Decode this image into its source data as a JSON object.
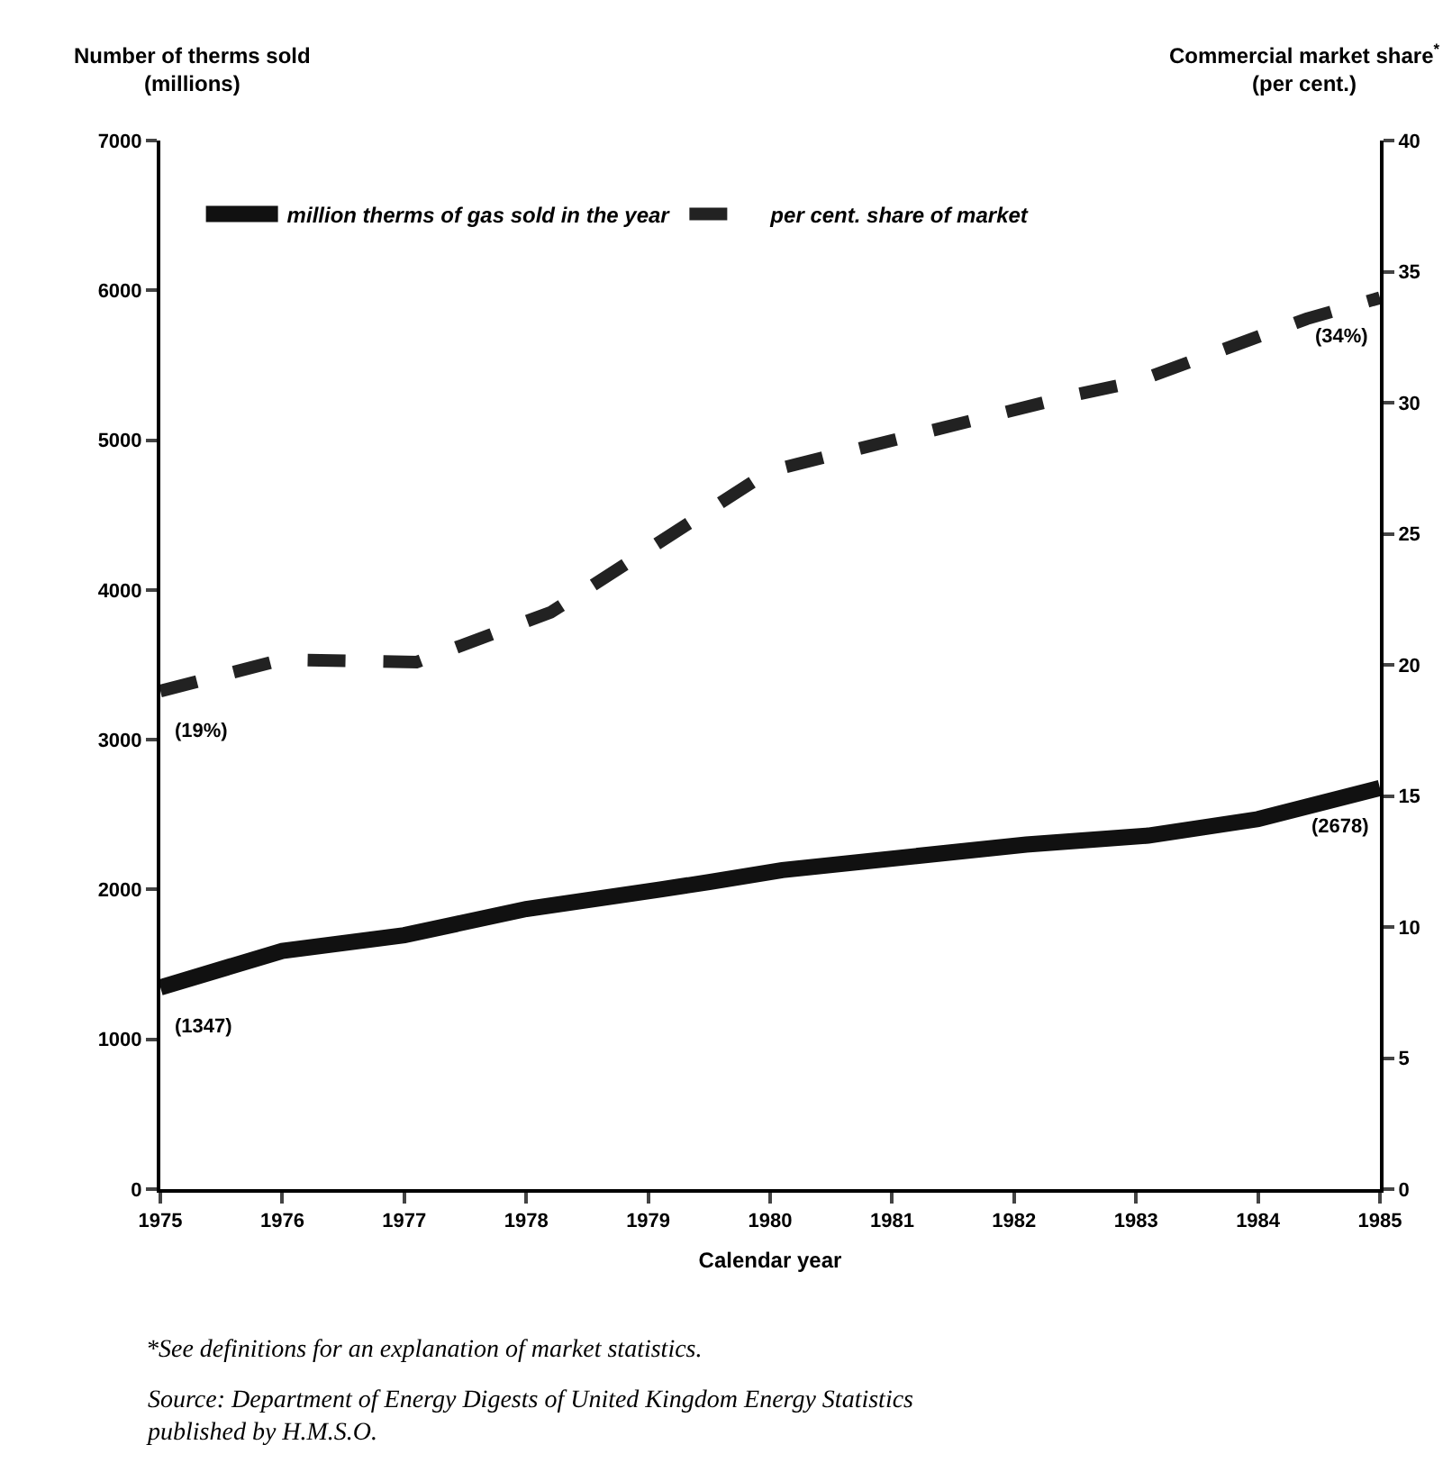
{
  "chart_data": {
    "type": "line",
    "xlabel": "Calendar year",
    "ylabel": "Number of therms sold\n(millions)",
    "y2label": "Commercial market share$^{*}$\n(per cent.)",
    "xlim": [
      1975,
      1985
    ],
    "xticks": [
      1975,
      1976,
      1977,
      1978,
      1979,
      1980,
      1981,
      1982,
      1983,
      1984,
      1985
    ],
    "ylim": [
      0,
      7000
    ],
    "yticks": [
      0,
      1000,
      2000,
      3000,
      4000,
      5000,
      6000,
      7000
    ],
    "y2lim": [
      0,
      40
    ],
    "y2ticks": [
      0,
      5,
      10,
      15,
      20,
      25,
      30,
      35,
      40
    ],
    "legend": "top",
    "series": [
      {
        "name": "million therms of gas sold in the year",
        "color": "#111111",
        "line_style": "solid",
        "x": [
          1975,
          1976,
          1977,
          1978,
          1979.1,
          1979.5,
          1980.1,
          1982.1,
          1983.1,
          1984,
          1985
        ],
        "values": [
          1347,
          1590,
          1695,
          1870,
          2000,
          2050,
          2130,
          2300,
          2360,
          2470,
          2678
        ],
        "value_labels": [
          "(1347)",
          null,
          null,
          null,
          null,
          null,
          null,
          null,
          null,
          null,
          "(2678)"
        ]
      },
      {
        "name": "per cent. share of market",
        "color": "#222222",
        "line_style": "dashed",
        "axis": "y2",
        "x": [
          1975,
          1976,
          1977.1,
          1978.2,
          1980,
          1982.5,
          1983,
          1984.4,
          1985
        ],
        "values": [
          19,
          20.2,
          20.1,
          22,
          27.4,
          30.3,
          30.8,
          33.2,
          34
        ],
        "value_labels": [
          "(19%)",
          null,
          null,
          null,
          null,
          null,
          null,
          null,
          "(34%)"
        ]
      }
    ],
    "annotations": [
      "*See definitions for an explanation of market statistics.",
      "Source: Department of Energy Digests of United Kingdom Energy Statistics\npublished by H.M.S.O."
    ]
  }
}
